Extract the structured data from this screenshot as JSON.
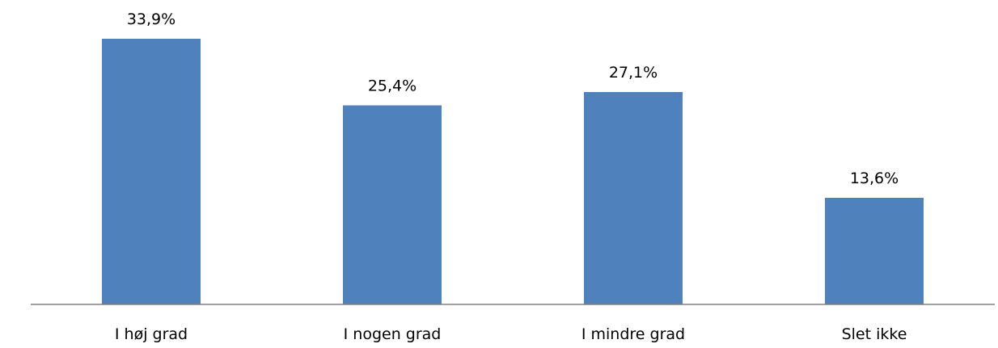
{
  "chart_data": {
    "type": "bar",
    "categories": [
      "I høj grad",
      "I nogen grad",
      "I mindre grad",
      "Slet ikke"
    ],
    "values": [
      33.9,
      25.4,
      27.1,
      13.6
    ],
    "value_labels": [
      "33,9%",
      "25,4%",
      "27,1%",
      "13,6%"
    ],
    "title": "",
    "xlabel": "",
    "ylabel": "",
    "ylim": [
      0,
      33.9
    ],
    "grid": false,
    "legend": "none",
    "colors": {
      "bar": "#4f81bd",
      "axis": "#808080"
    }
  }
}
